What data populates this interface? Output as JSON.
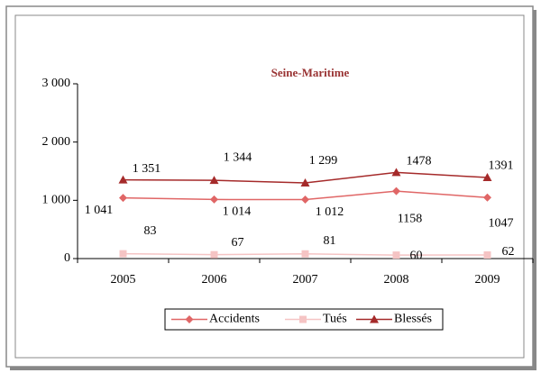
{
  "chart_data": {
    "type": "line",
    "title": "Seine-Maritime",
    "categories": [
      "2005",
      "2006",
      "2007",
      "2008",
      "2009"
    ],
    "series": [
      {
        "name": "Accidents",
        "color": "#e06666",
        "marker": "diamond",
        "values": [
          1041,
          1014,
          1012,
          1158,
          1047
        ],
        "value_labels": [
          "1 041",
          "1 014",
          "1 012",
          "1158",
          "1047"
        ]
      },
      {
        "name": "Tués",
        "color": "#f5c4c4",
        "marker": "square",
        "values": [
          83,
          67,
          81,
          60,
          62
        ]
      },
      {
        "name": "Blessés",
        "color": "#a52a2a",
        "marker": "triangle",
        "values": [
          1351,
          1344,
          1299,
          1478,
          1391
        ],
        "value_labels": [
          "1 351",
          "1 344",
          "1 299",
          "1478",
          "1391"
        ]
      }
    ],
    "ylim": [
      0,
      3000
    ],
    "yticks": [
      0,
      {
        "value": 1000,
        "label": "1 000"
      },
      {
        "value": 2000,
        "label": "2 000"
      },
      {
        "value": 3000,
        "label": "3 000"
      }
    ],
    "grid": false,
    "legend": "bottom"
  }
}
